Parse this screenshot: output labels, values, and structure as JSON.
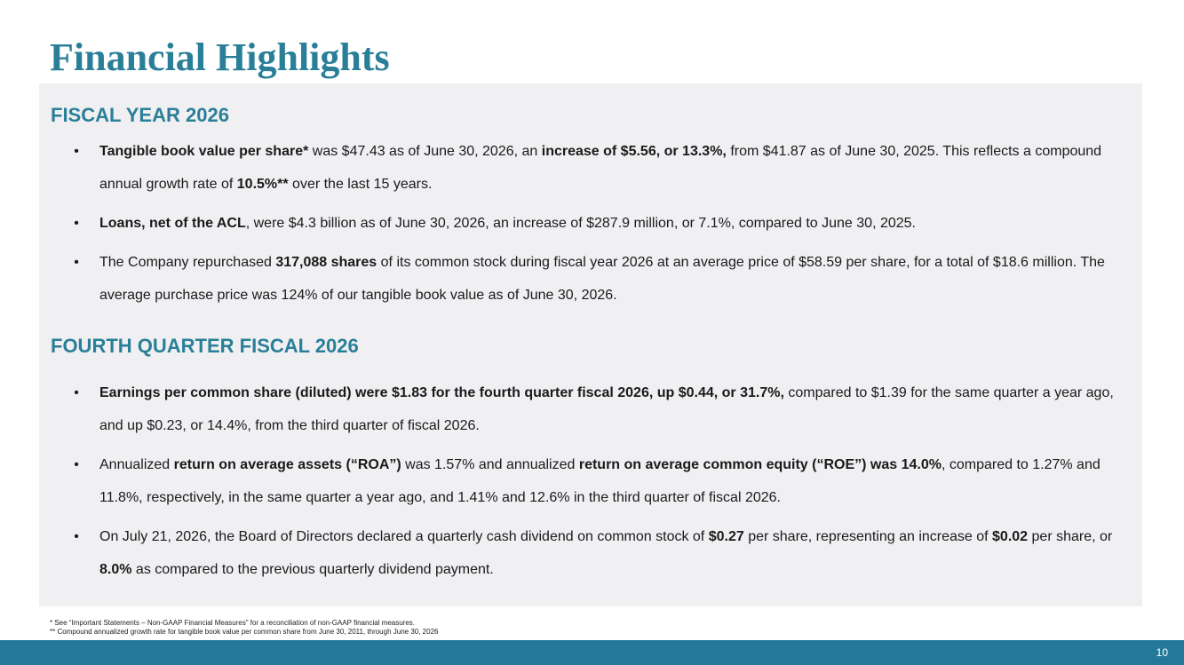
{
  "slide": {
    "title": "Financial Highlights",
    "page_number": "10",
    "accent_color": "#2a7f98",
    "footer_bar_color": "#24799a"
  },
  "section_fiscal_year": {
    "heading": "FISCAL YEAR 2026",
    "bullets": [
      [
        {
          "t": "Tangible book value per share*",
          "b": true
        },
        {
          "t": " was $47.43 as of June 30, 2026, an ",
          "b": false
        },
        {
          "t": "increase of $5.56, or 13.3%,",
          "b": true
        },
        {
          "t": " from $41.87 as of June 30, 2025. This reflects a compound annual growth rate of ",
          "b": false
        },
        {
          "t": "10.5%**",
          "b": true
        },
        {
          "t": " over the last 15 years.",
          "b": false
        }
      ],
      [
        {
          "t": "Loans, net of the ACL",
          "b": true
        },
        {
          "t": ", were $4.3 billion as of June 30, 2026, an increase of $287.9 million, or 7.1%, compared to June 30, 2025.",
          "b": false
        }
      ],
      [
        {
          "t": "The Company repurchased ",
          "b": false
        },
        {
          "t": "317,088 shares",
          "b": true
        },
        {
          "t": " of its common stock during fiscal year 2026 at an average price of $58.59 per share, for a total of $18.6 million. The average purchase price was 124% of our tangible book value as of June 30, 2026.",
          "b": false
        }
      ]
    ]
  },
  "section_fourth_quarter": {
    "heading": "FOURTH QUARTER FISCAL 2026",
    "bullets": [
      [
        {
          "t": "Earnings per common share (diluted) were $1.83 for the fourth quarter fiscal 2026, up $0.44, or 31.7%,",
          "b": true
        },
        {
          "t": " compared to $1.39 for the same quarter a year ago, and up $0.23, or 14.4%, from the third quarter of fiscal 2026.",
          "b": false
        }
      ],
      [
        {
          "t": "Annualized ",
          "b": false
        },
        {
          "t": "return on average assets (“ROA”)",
          "b": true
        },
        {
          "t": " was 1.57% and annualized ",
          "b": false
        },
        {
          "t": "return on average common equity (“ROE”) was 14.0%",
          "b": true
        },
        {
          "t": ", compared to 1.27% and 11.8%, respectively, in the same quarter a year ago, and 1.41% and 12.6% in the third quarter of fiscal 2026.",
          "b": false
        }
      ],
      [
        {
          "t": "On July 21, 2026, the Board of Directors declared a quarterly cash dividend on common stock of ",
          "b": false
        },
        {
          "t": "$0.27",
          "b": true
        },
        {
          "t": " per share, representing an increase of ",
          "b": false
        },
        {
          "t": "$0.02",
          "b": true
        },
        {
          "t": " per share, or ",
          "b": false
        },
        {
          "t": "8.0%",
          "b": true
        },
        {
          "t": " as compared to the previous quarterly dividend payment.",
          "b": false
        }
      ]
    ]
  },
  "footnotes": {
    "line1": "* See “Important Statements – Non-GAAP Financial Measures” for a reconciliation of non-GAAP financial measures.",
    "line2": "** Compound annualized growth rate for tangible book value per common share from June 30, 2011, through June 30, 2026"
  },
  "bullet_glyph": "•"
}
